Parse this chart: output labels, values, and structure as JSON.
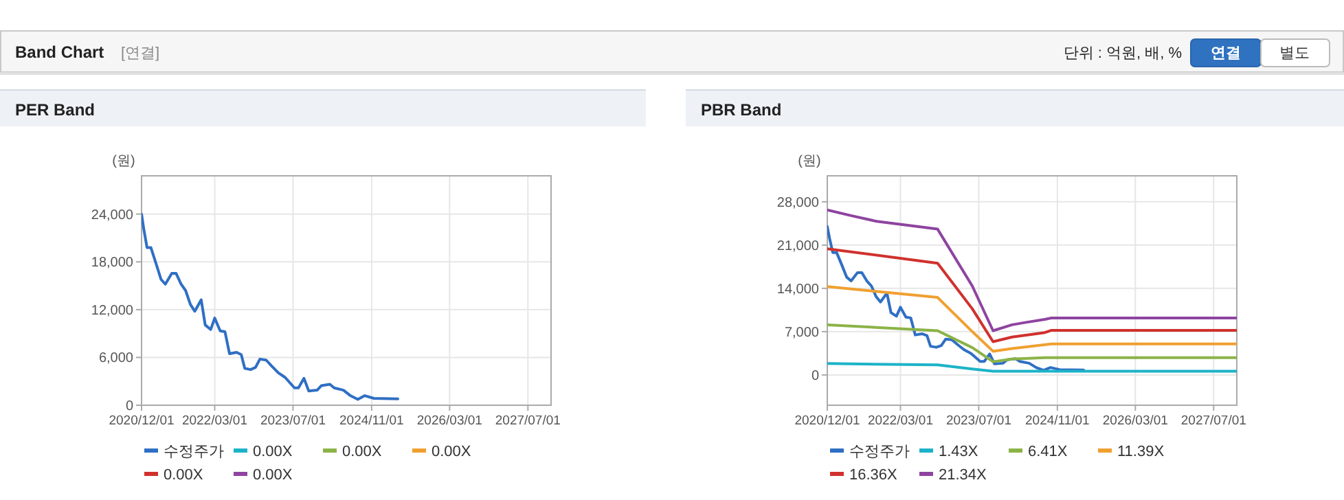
{
  "chart_data": [
    {
      "type": "other",
      "title": "Band Chart",
      "annotations": [
        "[연결]",
        "단위 : 억원, 배, %",
        "연결",
        "별도"
      ]
    },
    {
      "type": "line",
      "title": "PER Band",
      "ylabel": "(원)",
      "grid": true,
      "legend": "bottom",
      "xlim": [
        "2020-12-01",
        "2027-11-22"
      ],
      "xticks": [
        {
          "value": "2020-12-01",
          "label": "2020/12/01"
        },
        {
          "value": "2022-03-01",
          "label": "2022/03/01"
        },
        {
          "value": "2023-07-01",
          "label": "2023/07/01"
        },
        {
          "value": "2024-11-01",
          "label": "2024/11/01"
        },
        {
          "value": "2026-03-01",
          "label": "2026/03/01"
        },
        {
          "value": "2027-07-01",
          "label": "2027/07/01"
        }
      ],
      "ylim": [
        0,
        28800
      ],
      "yticks": [
        0,
        {
          "value": 6000,
          "label": "6,000"
        },
        {
          "value": 12000,
          "label": "12,000"
        },
        {
          "value": 18000,
          "label": "18,000"
        },
        {
          "value": 24000,
          "label": "24,000"
        }
      ],
      "series": [
        {
          "name": "수정주가",
          "color": "#2f6fc4",
          "x": [
            "2020-12-01",
            "2020-12-15",
            "2021-01-04",
            "2021-01-28",
            "2021-03-01",
            "2021-04-01",
            "2021-04-28",
            "2021-06-07",
            "2021-07-04",
            "2021-08-04",
            "2021-09-01",
            "2021-10-01",
            "2021-10-28",
            "2021-12-07",
            "2022-01-01",
            "2022-02-04",
            "2022-03-01",
            "2022-04-04",
            "2022-05-04",
            "2022-06-01",
            "2022-07-15",
            "2022-08-13",
            "2022-09-04",
            "2022-10-10",
            "2022-11-10",
            "2022-12-07",
            "2023-01-15",
            "2023-02-18",
            "2023-04-01",
            "2023-05-13",
            "2023-07-10",
            "2023-08-04",
            "2023-09-07",
            "2023-10-07",
            "2023-11-28",
            "2023-12-25",
            "2024-02-15",
            "2024-03-13",
            "2024-05-10",
            "2024-06-22",
            "2024-08-07",
            "2024-09-19",
            "2024-11-15",
            "2025-04-13"
          ],
          "values": [
            24000,
            22100,
            19800,
            19800,
            17800,
            15800,
            15200,
            16550,
            16550,
            15200,
            14400,
            12650,
            11800,
            13230,
            10080,
            9500,
            10940,
            9340,
            9220,
            6470,
            6640,
            6360,
            4640,
            4470,
            4750,
            5790,
            5670,
            4930,
            4070,
            3490,
            2180,
            2180,
            3380,
            1780,
            1890,
            2460,
            2630,
            2180,
            1890,
            1200,
            740,
            1200,
            860,
            800
          ]
        },
        {
          "name": "0.00X",
          "color": "#1cb3c8"
        },
        {
          "name": "0.00X",
          "color": "#8bb347"
        },
        {
          "name": "0.00X",
          "color": "#f0a030"
        },
        {
          "name": "0.00X",
          "color": "#d0312d"
        },
        {
          "name": "0.00X",
          "color": "#8e44a0"
        }
      ]
    },
    {
      "type": "line",
      "title": "PBR Band",
      "ylabel": "(원)",
      "grid": true,
      "legend": "bottom",
      "xlim": [
        "2020-12-01",
        "2027-11-22"
      ],
      "xticks": [
        {
          "value": "2020-12-01",
          "label": "2020/12/01"
        },
        {
          "value": "2022-03-01",
          "label": "2022/03/01"
        },
        {
          "value": "2023-07-01",
          "label": "2023/07/01"
        },
        {
          "value": "2024-11-01",
          "label": "2024/11/01"
        },
        {
          "value": "2026-03-01",
          "label": "2026/03/01"
        },
        {
          "value": "2027-07-01",
          "label": "2027/07/01"
        }
      ],
      "ylim": [
        -4900,
        32200
      ],
      "yticks": [
        0,
        {
          "value": 7000,
          "label": "7,000"
        },
        {
          "value": 14000,
          "label": "14,000"
        },
        {
          "value": 21000,
          "label": "21,000"
        },
        {
          "value": 28000,
          "label": "28,000"
        }
      ],
      "series": [
        {
          "name": "수정주가",
          "color": "#2f6fc4",
          "x": [
            "2020-12-01",
            "2020-12-15",
            "2021-01-04",
            "2021-01-28",
            "2021-03-01",
            "2021-04-01",
            "2021-04-28",
            "2021-06-07",
            "2021-07-04",
            "2021-08-04",
            "2021-09-01",
            "2021-10-01",
            "2021-10-28",
            "2021-12-07",
            "2022-01-01",
            "2022-02-04",
            "2022-03-01",
            "2022-04-04",
            "2022-05-04",
            "2022-06-01",
            "2022-07-15",
            "2022-08-13",
            "2022-09-04",
            "2022-10-10",
            "2022-11-10",
            "2022-12-07",
            "2023-01-15",
            "2023-02-18",
            "2023-04-01",
            "2023-05-13",
            "2023-07-10",
            "2023-08-04",
            "2023-09-07",
            "2023-10-07",
            "2023-11-28",
            "2023-12-25",
            "2024-02-15",
            "2024-03-13",
            "2024-05-10",
            "2024-06-22",
            "2024-08-07",
            "2024-09-19",
            "2024-11-15",
            "2025-04-13"
          ],
          "values": [
            24000,
            22100,
            19800,
            19800,
            17800,
            15800,
            15200,
            16550,
            16550,
            15200,
            14400,
            12650,
            11800,
            13230,
            10080,
            9500,
            10940,
            9340,
            9220,
            6470,
            6640,
            6360,
            4640,
            4470,
            4750,
            5790,
            5670,
            4930,
            4070,
            3490,
            2180,
            2180,
            3380,
            1780,
            1890,
            2460,
            2630,
            2180,
            1890,
            1200,
            740,
            1200,
            860,
            800
          ]
        },
        {
          "name": "1.43X",
          "color": "#1cb3c8",
          "x": [
            "2020-12-01",
            "2022-10-18",
            "2023-05-22",
            "2023-09-28",
            "2027-11-22"
          ],
          "values": [
            1840,
            1620,
            960,
            590,
            590
          ]
        },
        {
          "name": "6.41X",
          "color": "#8bb347",
          "x": [
            "2020-12-01",
            "2022-10-18",
            "2023-05-22",
            "2023-09-28",
            "2024-01-24",
            "2024-08-15",
            "2027-11-22"
          ],
          "values": [
            8110,
            7150,
            4420,
            2140,
            2580,
            2800,
            2800
          ]
        },
        {
          "name": "11.39X",
          "color": "#f0a030",
          "x": [
            "2020-12-01",
            "2022-10-18",
            "2023-05-22",
            "2023-09-28",
            "2024-01-24",
            "2024-09-25",
            "2027-11-22"
          ],
          "values": [
            14300,
            12530,
            7000,
            3830,
            4270,
            5010,
            5010
          ]
        },
        {
          "name": "16.36X",
          "color": "#d0312d",
          "x": [
            "2020-12-01",
            "2022-10-18",
            "2023-05-22",
            "2023-09-28",
            "2024-01-24",
            "2024-08-15",
            "2024-09-25",
            "2027-11-22"
          ],
          "values": [
            20410,
            18060,
            10690,
            5380,
            6120,
            6850,
            7220,
            7220
          ]
        },
        {
          "name": "21.34X",
          "color": "#8e44a0",
          "x": [
            "2020-12-01",
            "2021-04-22",
            "2021-10-04",
            "2022-10-18",
            "2023-05-22",
            "2023-09-28",
            "2024-01-24",
            "2024-04-13",
            "2024-08-15",
            "2024-09-25",
            "2027-11-22"
          ],
          "values": [
            26680,
            25800,
            24840,
            23580,
            14370,
            7150,
            8110,
            8470,
            8990,
            9210,
            9210
          ]
        }
      ]
    }
  ]
}
